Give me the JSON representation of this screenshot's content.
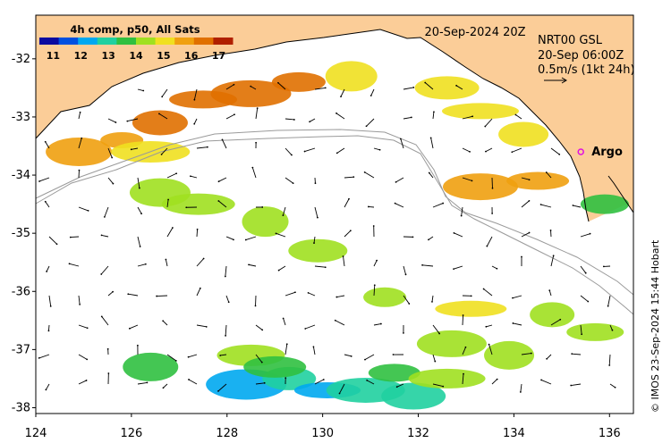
{
  "map": {
    "date_label": "20-Sep-2024 20Z",
    "product": {
      "line1": "NRT00 GSL",
      "line2": "20-Sep 06:00Z",
      "line3": "0.5m/s (1kt 24h)"
    },
    "platform_label": "Argo",
    "credit": "© IMOS 23-Sep-2024 15:44 Hobart",
    "extent": {
      "lon": [
        124,
        136.5
      ],
      "lat": [
        -38.1,
        -31.25
      ]
    },
    "lon_ticks": [
      "124",
      "126",
      "128",
      "130",
      "132",
      "134",
      "136"
    ],
    "lat_ticks": [
      "-32",
      "-33",
      "-34",
      "-35",
      "-36",
      "-37",
      "-38"
    ],
    "colors": {
      "land": "#fbcd98",
      "ocean": "#ffffff",
      "argo_marker": "#e010e0",
      "contour": "#9a9a9a"
    },
    "colorbar": {
      "title": "4h comp, p50, All Sats",
      "range": [
        10.5,
        17.5
      ],
      "tick_labels": [
        "11",
        "12",
        "13",
        "14",
        "15",
        "16",
        "17"
      ],
      "colors": [
        "#0a0aa0",
        "#0050e0",
        "#00a8f0",
        "#20d0a0",
        "#30c040",
        "#a0e020",
        "#f0e020",
        "#f0a010",
        "#e07000",
        "#b02000"
      ]
    }
  },
  "chart_data": {
    "type": "heatmap",
    "title": "4h comp, p50, All Sats",
    "annotations": [
      "20-Sep-2024 20Z",
      "NRT00 GSL",
      "20-Sep 06:00Z",
      "0.5m/s (1kt 24h)",
      "Argo"
    ],
    "x_ticks": [
      124,
      126,
      128,
      130,
      132,
      134,
      136
    ],
    "y_ticks": [
      -32,
      -33,
      -34,
      -35,
      -36,
      -37,
      -38
    ],
    "xlim": [
      124,
      136.5
    ],
    "ylim": [
      -38.1,
      -31.25
    ],
    "colorbar_range": [
      10.5,
      17.5
    ],
    "argo": {
      "lon": 135.4,
      "lat": -33.6
    },
    "sst_patches": [
      {
        "lon": 125.8,
        "lat": -33.4,
        "value": 16.0
      },
      {
        "lon": 126.6,
        "lat": -33.1,
        "value": 16.2
      },
      {
        "lon": 127.5,
        "lat": -32.7,
        "value": 16.4
      },
      {
        "lon": 128.5,
        "lat": -32.6,
        "value": 16.3
      },
      {
        "lon": 129.5,
        "lat": -32.4,
        "value": 16.2
      },
      {
        "lon": 124.9,
        "lat": -33.6,
        "value": 15.8
      },
      {
        "lon": 126.4,
        "lat": -33.6,
        "value": 15.0
      },
      {
        "lon": 130.6,
        "lat": -32.3,
        "value": 14.8
      },
      {
        "lon": 132.6,
        "lat": -32.5,
        "value": 14.8
      },
      {
        "lon": 133.3,
        "lat": -32.9,
        "value": 15.3
      },
      {
        "lon": 134.2,
        "lat": -33.3,
        "value": 15.0
      },
      {
        "lon": 134.5,
        "lat": -34.1,
        "value": 15.9
      },
      {
        "lon": 133.3,
        "lat": -34.2,
        "value": 15.5
      },
      {
        "lon": 135.9,
        "lat": -34.5,
        "value": 13.8
      },
      {
        "lon": 126.6,
        "lat": -34.3,
        "value": 14.2
      },
      {
        "lon": 127.4,
        "lat": -34.5,
        "value": 14.3
      },
      {
        "lon": 128.8,
        "lat": -34.8,
        "value": 14.6
      },
      {
        "lon": 129.9,
        "lat": -35.3,
        "value": 14.2
      },
      {
        "lon": 133.1,
        "lat": -36.3,
        "value": 14.8
      },
      {
        "lon": 134.8,
        "lat": -36.4,
        "value": 14.7
      },
      {
        "lon": 135.7,
        "lat": -36.7,
        "value": 14.5
      },
      {
        "lon": 132.7,
        "lat": -36.9,
        "value": 14.6
      },
      {
        "lon": 131.3,
        "lat": -36.1,
        "value": 14.0
      },
      {
        "lon": 126.4,
        "lat": -37.3,
        "value": 13.9
      },
      {
        "lon": 128.5,
        "lat": -37.1,
        "value": 14.1
      },
      {
        "lon": 128.4,
        "lat": -37.6,
        "value": 12.4
      },
      {
        "lon": 129.3,
        "lat": -37.5,
        "value": 12.8
      },
      {
        "lon": 130.1,
        "lat": -37.7,
        "value": 12.6
      },
      {
        "lon": 130.9,
        "lat": -37.7,
        "value": 12.9
      },
      {
        "lon": 131.5,
        "lat": -37.4,
        "value": 13.4
      },
      {
        "lon": 131.9,
        "lat": -37.8,
        "value": 13.2
      },
      {
        "lon": 132.6,
        "lat": -37.5,
        "value": 14.2
      },
      {
        "lon": 133.9,
        "lat": -37.1,
        "value": 14.5
      },
      {
        "lon": 129.0,
        "lat": -37.3,
        "value": 13.7
      }
    ]
  }
}
